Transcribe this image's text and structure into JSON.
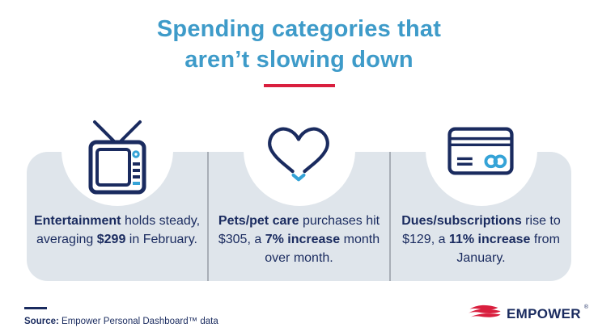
{
  "title": {
    "line1": "Spending categories that",
    "line2": "aren’t slowing down"
  },
  "cards": [
    {
      "category": "Entertainment",
      "icon": "tv-icon",
      "segments": [
        {
          "text": "Entertainment",
          "bold": true
        },
        {
          "text": " holds steady, averaging ",
          "bold": false
        },
        {
          "text": "$299",
          "bold": true
        },
        {
          "text": " in February.",
          "bold": false
        }
      ]
    },
    {
      "category": "Pets/pet care",
      "icon": "heart-icon",
      "segments": [
        {
          "text": "Pets/pet care",
          "bold": true
        },
        {
          "text": " purchases hit $305, a ",
          "bold": false
        },
        {
          "text": "7% increase",
          "bold": true
        },
        {
          "text": " month over month.",
          "bold": false
        }
      ]
    },
    {
      "category": "Dues/subscriptions",
      "icon": "credit-card-icon",
      "segments": [
        {
          "text": "Dues/subscriptions",
          "bold": true
        },
        {
          "text": " rise to $129, a ",
          "bold": false
        },
        {
          "text": "11% increase",
          "bold": true
        },
        {
          "text": " from January.",
          "bold": false
        }
      ]
    }
  ],
  "footer": {
    "source_label": "Source:",
    "source_text": " Empower Personal Dashboard™ data",
    "logo_text": "EMPOWER",
    "logo_reg": "®"
  },
  "colors": {
    "title_blue": "#3e9bc9",
    "navy": "#1a2b5f",
    "accent_blue": "#35a3d7",
    "brand_red": "#d91f3e",
    "card_bg": "#dfe5eb",
    "separator_gray": "#a8aeb6"
  }
}
